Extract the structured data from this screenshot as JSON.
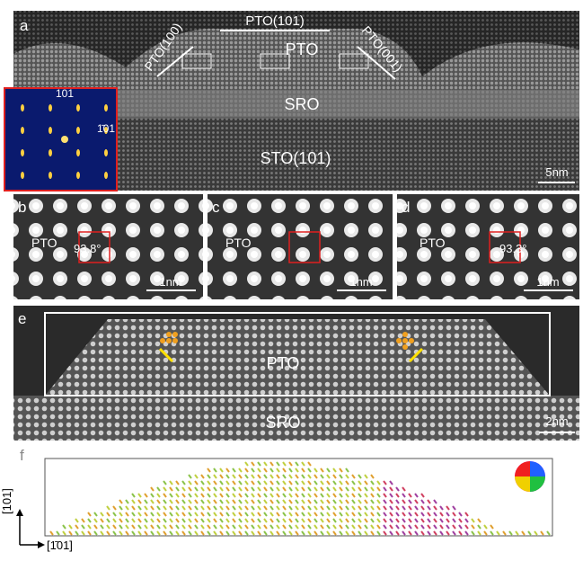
{
  "panel_a": {
    "label": "a",
    "facet_top": "PTO(101)",
    "facet_left": "PTO(100)",
    "facet_right": "PTO(001)",
    "region_pto": "PTO",
    "region_sro": "SRO",
    "region_sto": "STO(101)",
    "scale_bar": "5nm",
    "inset_spot_top": "101",
    "inset_spot_right": "1̄01"
  },
  "panel_b": {
    "label": "b",
    "region": "PTO",
    "angle": "93.8°",
    "scale_bar": "1nm"
  },
  "panel_c": {
    "label": "c",
    "region": "PTO",
    "scale_bar": "1nm"
  },
  "panel_d": {
    "label": "d",
    "region": "PTO",
    "angle": "93.3°",
    "scale_bar": "1nm"
  },
  "panel_e": {
    "label": "e",
    "region_pto": "PTO",
    "region_sro": "SRO",
    "scale_bar": "2nm"
  },
  "panel_f": {
    "label": "f",
    "axis_vertical": "[101]",
    "axis_horizontal": "[1̄01]"
  }
}
